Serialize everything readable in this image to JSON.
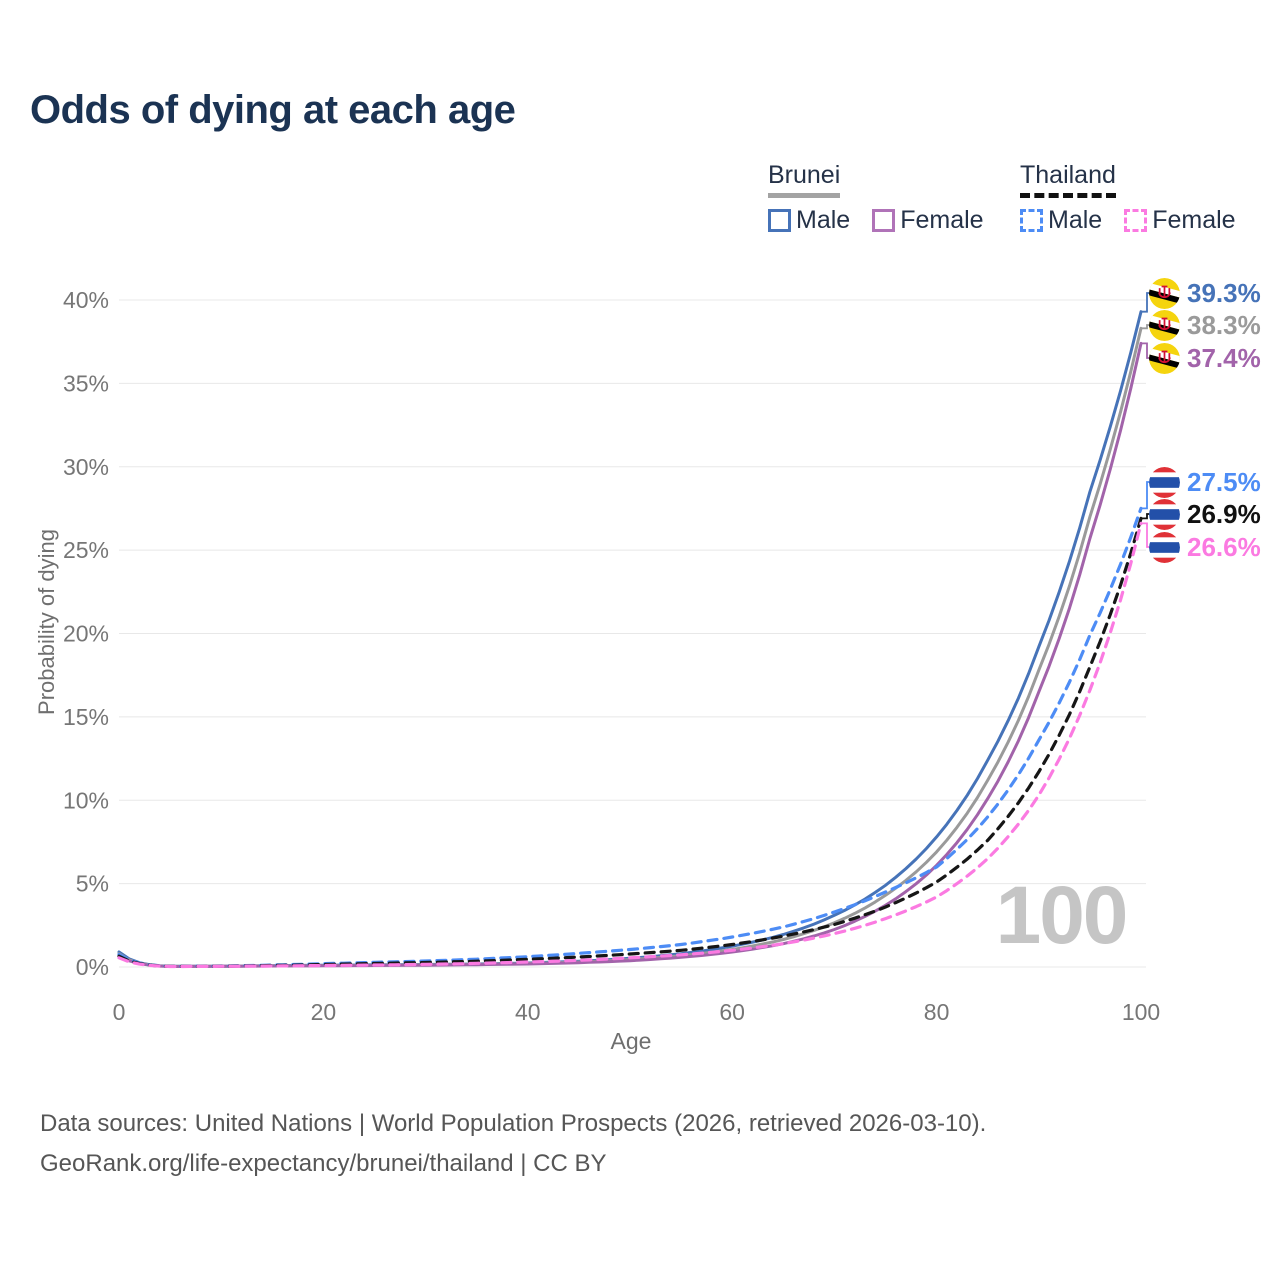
{
  "title": "Odds of dying at each age",
  "watermark": "100",
  "legend": {
    "groups": [
      {
        "name": "Brunei",
        "line_style": "solid",
        "underline_color": "#a3a3a3",
        "items": [
          {
            "label": "Male",
            "color": "#4673b8"
          },
          {
            "label": "Female",
            "color": "#b073b8"
          }
        ]
      },
      {
        "name": "Thailand",
        "line_style": "dashed",
        "underline_color": "#111111",
        "items": [
          {
            "label": "Male",
            "color": "#4d8cf5"
          },
          {
            "label": "Female",
            "color": "#fb7ae1"
          }
        ]
      }
    ]
  },
  "axes": {
    "x": {
      "title": "Age",
      "ticks": [
        {
          "value": 0,
          "label": "0"
        },
        {
          "value": 20,
          "label": "20"
        },
        {
          "value": 40,
          "label": "40"
        },
        {
          "value": 60,
          "label": "60"
        },
        {
          "value": 80,
          "label": "80"
        },
        {
          "value": 100,
          "label": "100"
        }
      ]
    },
    "y": {
      "title": "Probability of dying",
      "ticks": [
        {
          "value": 0,
          "label": "0%"
        },
        {
          "value": 5,
          "label": "5%"
        },
        {
          "value": 10,
          "label": "10%"
        },
        {
          "value": 15,
          "label": "15%"
        },
        {
          "value": 20,
          "label": "20%"
        },
        {
          "value": 25,
          "label": "25%"
        },
        {
          "value": 30,
          "label": "30%"
        },
        {
          "value": 35,
          "label": "35%"
        },
        {
          "value": 40,
          "label": "40%"
        }
      ]
    }
  },
  "end_labels": [
    {
      "series": "brunei-male",
      "value": "39.3%",
      "color": "#4673b8",
      "flag": "brunei"
    },
    {
      "series": "brunei-all",
      "value": "38.3%",
      "color": "#9a9a9a",
      "flag": "brunei"
    },
    {
      "series": "brunei-female",
      "value": "37.4%",
      "color": "#a263aa",
      "flag": "brunei"
    },
    {
      "series": "thailand-male",
      "value": "27.5%",
      "color": "#4d8cf5",
      "flag": "thailand"
    },
    {
      "series": "thailand-all",
      "value": "26.9%",
      "color": "#111111",
      "flag": "thailand"
    },
    {
      "series": "thailand-female",
      "value": "26.6%",
      "color": "#fb7ae1",
      "flag": "thailand"
    }
  ],
  "source_lines": [
    "Data sources: United Nations | World Population Prospects (2026, retrieved 2026-03-10).",
    "GeoRank.org/life-expectancy/brunei/thailand | CC BY"
  ],
  "chart_data": {
    "type": "line",
    "title": "Odds of dying at each age",
    "xlabel": "Age",
    "ylabel": "Probability of dying",
    "xlim": [
      0,
      100
    ],
    "ylim": [
      0,
      40
    ],
    "y_unit": "percent",
    "grid": "horizontal",
    "x": [
      0,
      5,
      10,
      15,
      20,
      25,
      30,
      35,
      40,
      45,
      50,
      55,
      60,
      65,
      70,
      75,
      80,
      85,
      90,
      95,
      100
    ],
    "series": [
      {
        "id": "brunei-male",
        "name": "Brunei Male",
        "color": "#4673b8",
        "dash": false,
        "values": [
          0.9,
          0.04,
          0.05,
          0.08,
          0.11,
          0.13,
          0.15,
          0.18,
          0.24,
          0.35,
          0.52,
          0.8,
          1.25,
          1.95,
          3.1,
          4.9,
          7.8,
          12.4,
          19.2,
          28.5,
          39.3
        ]
      },
      {
        "id": "brunei-all",
        "name": "Brunei (both sexes)",
        "color": "#9a9a9a",
        "dash": false,
        "values": [
          0.8,
          0.035,
          0.045,
          0.07,
          0.09,
          0.11,
          0.13,
          0.16,
          0.21,
          0.3,
          0.45,
          0.68,
          1.05,
          1.65,
          2.65,
          4.3,
          6.9,
          11.2,
          17.8,
          27.0,
          38.3
        ]
      },
      {
        "id": "brunei-female",
        "name": "Brunei Female",
        "color": "#a263aa",
        "dash": false,
        "values": [
          0.7,
          0.03,
          0.04,
          0.06,
          0.07,
          0.09,
          0.11,
          0.14,
          0.18,
          0.26,
          0.38,
          0.58,
          0.9,
          1.4,
          2.25,
          3.7,
          6.1,
          10.1,
          16.5,
          25.7,
          37.4
        ]
      },
      {
        "id": "thailand-male",
        "name": "Thailand Male",
        "color": "#4d8cf5",
        "dash": true,
        "values": [
          0.75,
          0.04,
          0.06,
          0.12,
          0.2,
          0.28,
          0.36,
          0.47,
          0.62,
          0.82,
          1.05,
          1.35,
          1.8,
          2.4,
          3.3,
          4.5,
          6.0,
          9.0,
          13.6,
          19.9,
          27.5
        ]
      },
      {
        "id": "thailand-all",
        "name": "Thailand (both sexes)",
        "color": "#161616",
        "dash": true,
        "values": [
          0.65,
          0.035,
          0.05,
          0.09,
          0.15,
          0.21,
          0.27,
          0.35,
          0.46,
          0.6,
          0.78,
          1.0,
          1.35,
          1.85,
          2.55,
          3.6,
          5.1,
          7.6,
          11.7,
          18.0,
          26.9
        ]
      },
      {
        "id": "thailand-female",
        "name": "Thailand Female",
        "color": "#fb7ae1",
        "dash": true,
        "values": [
          0.55,
          0.03,
          0.04,
          0.06,
          0.09,
          0.12,
          0.16,
          0.22,
          0.3,
          0.4,
          0.55,
          0.73,
          1.0,
          1.4,
          2.0,
          2.9,
          4.2,
          6.5,
          10.3,
          16.6,
          26.6
        ]
      }
    ]
  }
}
